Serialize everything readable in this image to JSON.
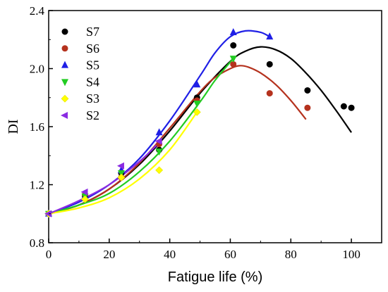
{
  "chart_data": {
    "type": "scatter",
    "xlabel": "Fatigue life (%)",
    "ylabel": "DI",
    "xlim": [
      0,
      110
    ],
    "ylim": [
      0.8,
      2.4
    ],
    "xticks": [
      "0",
      "20",
      "40",
      "60",
      "80",
      "100"
    ],
    "xtick_values": [
      0,
      20,
      40,
      60,
      80,
      100
    ],
    "yticks": [
      "0.8",
      "1.2",
      "1.6",
      "2.0",
      "2.4"
    ],
    "ytick_values": [
      0.8,
      1.2,
      1.6,
      2.0,
      2.4
    ],
    "grid": false,
    "legend_position": "top-left",
    "series": [
      {
        "name": "S7",
        "color": "#000000",
        "marker": "circle",
        "points": [
          [
            0,
            1.0
          ],
          [
            12,
            1.12
          ],
          [
            24,
            1.28
          ],
          [
            36.5,
            1.44
          ],
          [
            49,
            1.8
          ],
          [
            61,
            2.16
          ],
          [
            73,
            2.03
          ],
          [
            85.5,
            1.85
          ],
          [
            97.5,
            1.74
          ],
          [
            100,
            1.73
          ]
        ],
        "fit": [
          [
            0,
            1.0
          ],
          [
            10,
            1.06
          ],
          [
            20,
            1.17
          ],
          [
            30,
            1.34
          ],
          [
            40,
            1.57
          ],
          [
            50,
            1.83
          ],
          [
            60,
            2.05
          ],
          [
            65,
            2.12
          ],
          [
            70,
            2.15
          ],
          [
            75,
            2.13
          ],
          [
            80,
            2.07
          ],
          [
            85,
            1.97
          ],
          [
            90,
            1.85
          ],
          [
            95,
            1.71
          ],
          [
            100,
            1.56
          ]
        ]
      },
      {
        "name": "S6",
        "color": "#b5321e",
        "marker": "circle",
        "points": [
          [
            0,
            1.0
          ],
          [
            12,
            1.13
          ],
          [
            24,
            1.25
          ],
          [
            36.5,
            1.48
          ],
          [
            49,
            1.78
          ],
          [
            61,
            2.03
          ],
          [
            73,
            1.83
          ],
          [
            85.5,
            1.73
          ]
        ],
        "fit": [
          [
            0,
            1.0
          ],
          [
            10,
            1.06
          ],
          [
            20,
            1.17
          ],
          [
            30,
            1.35
          ],
          [
            40,
            1.59
          ],
          [
            50,
            1.84
          ],
          [
            55,
            1.94
          ],
          [
            60,
            2.0
          ],
          [
            63,
            2.02
          ],
          [
            66,
            2.01
          ],
          [
            70,
            1.97
          ],
          [
            75,
            1.89
          ],
          [
            80,
            1.78
          ],
          [
            85,
            1.65
          ]
        ]
      },
      {
        "name": "S5",
        "color": "#1f1fe6",
        "marker": "triangle-up",
        "points": [
          [
            0,
            1.0
          ],
          [
            12,
            1.12
          ],
          [
            24,
            1.3
          ],
          [
            36.5,
            1.56
          ],
          [
            49,
            1.89
          ],
          [
            61,
            2.25
          ],
          [
            73,
            2.22
          ]
        ],
        "fit": [
          [
            0,
            1.0
          ],
          [
            10,
            1.08
          ],
          [
            20,
            1.2
          ],
          [
            30,
            1.38
          ],
          [
            40,
            1.64
          ],
          [
            50,
            1.95
          ],
          [
            55,
            2.11
          ],
          [
            60,
            2.22
          ],
          [
            65,
            2.26
          ],
          [
            70,
            2.25
          ],
          [
            73,
            2.22
          ]
        ]
      },
      {
        "name": "S4",
        "color": "#22cc22",
        "marker": "triangle-down",
        "points": [
          [
            0,
            1.0
          ],
          [
            12,
            1.12
          ],
          [
            24,
            1.28
          ],
          [
            36.5,
            1.43
          ],
          [
            49,
            1.76
          ],
          [
            61,
            2.07
          ]
        ],
        "fit": [
          [
            0,
            1.0
          ],
          [
            10,
            1.06
          ],
          [
            20,
            1.14
          ],
          [
            30,
            1.29
          ],
          [
            40,
            1.5
          ],
          [
            50,
            1.77
          ],
          [
            55,
            1.92
          ],
          [
            61,
            2.07
          ]
        ]
      },
      {
        "name": "S3",
        "color": "#ffff00",
        "marker": "diamond",
        "points": [
          [
            0,
            1.0
          ],
          [
            12,
            1.1
          ],
          [
            24,
            1.25
          ],
          [
            36.5,
            1.3
          ],
          [
            49,
            1.7
          ]
        ],
        "fit": [
          [
            0,
            1.0
          ],
          [
            10,
            1.04
          ],
          [
            20,
            1.11
          ],
          [
            30,
            1.24
          ],
          [
            40,
            1.44
          ],
          [
            49,
            1.7
          ]
        ]
      },
      {
        "name": "S2",
        "color": "#8a2be2",
        "marker": "triangle-left",
        "points": [
          [
            0,
            1.0
          ],
          [
            12,
            1.15
          ],
          [
            24,
            1.33
          ],
          [
            36.5,
            1.5
          ]
        ],
        "fit": [
          [
            0,
            1.0
          ],
          [
            10,
            1.09
          ],
          [
            20,
            1.2
          ],
          [
            30,
            1.36
          ],
          [
            36.5,
            1.49
          ]
        ]
      }
    ]
  }
}
